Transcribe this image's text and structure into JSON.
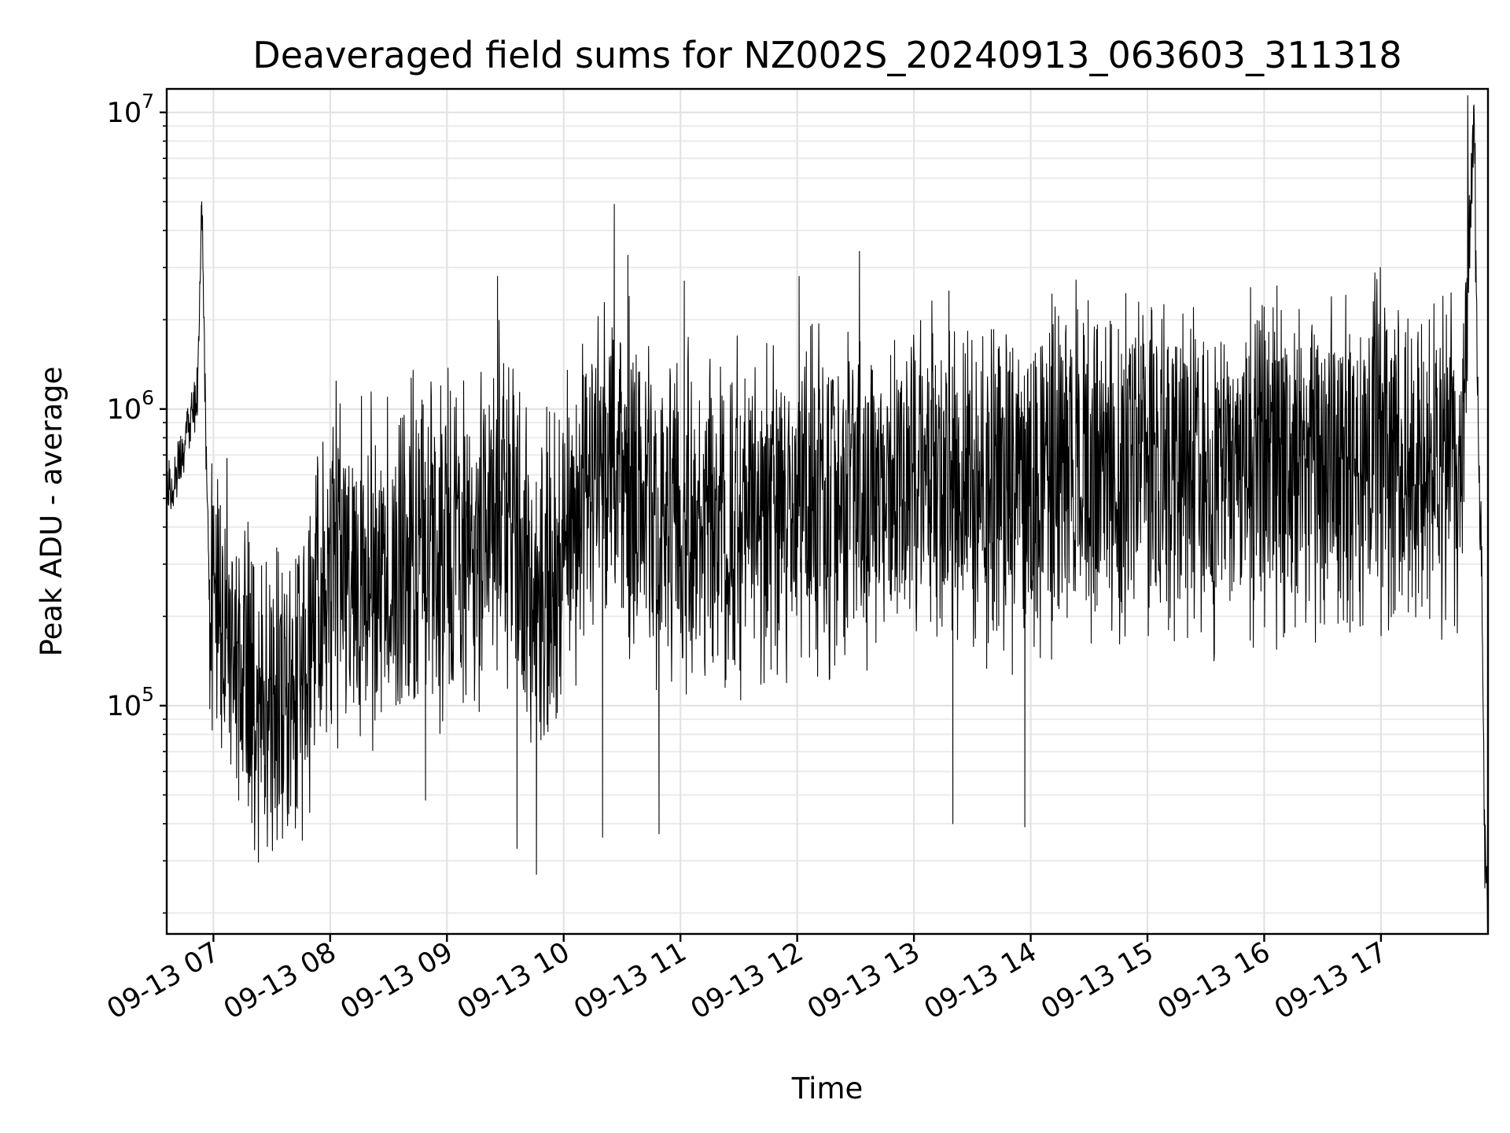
{
  "chart_data": {
    "type": "line",
    "title": "Deaveraged field sums for NZ002S_20240913_063603_311318",
    "xlabel": "Time",
    "ylabel": "Peak ADU - average",
    "yscale": "log",
    "ylim": [
      17000,
      12000000
    ],
    "xlim": [
      "2024-09-13 06:36",
      "2024-09-13 17:55"
    ],
    "grid": true,
    "x_ticks": [
      {
        "value": "2024-09-13 07:00",
        "label": "09-13 07"
      },
      {
        "value": "2024-09-13 08:00",
        "label": "09-13 08"
      },
      {
        "value": "2024-09-13 09:00",
        "label": "09-13 09"
      },
      {
        "value": "2024-09-13 10:00",
        "label": "09-13 10"
      },
      {
        "value": "2024-09-13 11:00",
        "label": "09-13 11"
      },
      {
        "value": "2024-09-13 12:00",
        "label": "09-13 12"
      },
      {
        "value": "2024-09-13 13:00",
        "label": "09-13 13"
      },
      {
        "value": "2024-09-13 14:00",
        "label": "09-13 14"
      },
      {
        "value": "2024-09-13 15:00",
        "label": "09-13 15"
      },
      {
        "value": "2024-09-13 16:00",
        "label": "09-13 16"
      },
      {
        "value": "2024-09-13 17:00",
        "label": "09-13 17"
      }
    ],
    "y_ticks": [
      {
        "value": 100000,
        "base": "10",
        "exp": "5"
      },
      {
        "value": 1000000,
        "base": "10",
        "exp": "6"
      },
      {
        "value": 10000000,
        "base": "10",
        "exp": "7"
      }
    ],
    "series": [
      {
        "color": "#000000",
        "points": [
          [
            "2024-09-13 06:36",
            520000
          ],
          [
            "2024-09-13 06:45",
            700000
          ],
          [
            "2024-09-13 06:52",
            1200000
          ],
          [
            "2024-09-13 06:54",
            5000000
          ],
          [
            "2024-09-13 06:56",
            900000
          ],
          [
            "2024-09-13 06:58",
            220000
          ],
          [
            "2024-09-13 07:15",
            120000
          ],
          [
            "2024-09-13 07:30",
            100000
          ],
          [
            "2024-09-13 07:45",
            130000
          ],
          [
            "2024-09-13 08:00",
            300000
          ],
          [
            "2024-09-13 08:30",
            280000
          ],
          [
            "2024-09-13 09:00",
            330000
          ],
          [
            "2024-09-13 09:30",
            500000
          ],
          [
            "2024-09-13 09:45",
            200000
          ],
          [
            "2024-09-13 10:00",
            380000
          ],
          [
            "2024-09-13 10:25",
            600000
          ],
          [
            "2024-09-13 10:45",
            450000
          ],
          [
            "2024-09-13 11:00",
            400000
          ],
          [
            "2024-09-13 11:30",
            420000
          ],
          [
            "2024-09-13 12:00",
            480000
          ],
          [
            "2024-09-13 12:30",
            560000
          ],
          [
            "2024-09-13 13:00",
            580000
          ],
          [
            "2024-09-13 13:30",
            570000
          ],
          [
            "2024-09-13 14:00",
            560000
          ],
          [
            "2024-09-13 14:30",
            620000
          ],
          [
            "2024-09-13 15:00",
            640000
          ],
          [
            "2024-09-13 15:30",
            600000
          ],
          [
            "2024-09-13 16:00",
            650000
          ],
          [
            "2024-09-13 16:30",
            680000
          ],
          [
            "2024-09-13 17:00",
            700000
          ],
          [
            "2024-09-13 17:40",
            600000
          ],
          [
            "2024-09-13 17:48",
            9000000
          ],
          [
            "2024-09-13 17:50",
            800000
          ],
          [
            "2024-09-13 17:52",
            250000
          ],
          [
            "2024-09-13 17:53",
            40000
          ],
          [
            "2024-09-13 17:55",
            21000
          ]
        ],
        "peaks": [
          [
            "2024-09-13 06:54",
            5000000
          ],
          [
            "2024-09-13 09:26",
            2800000
          ],
          [
            "2024-09-13 10:26",
            4900000
          ],
          [
            "2024-09-13 10:33",
            3300000
          ],
          [
            "2024-09-13 11:02",
            2700000
          ],
          [
            "2024-09-13 12:01",
            2800000
          ],
          [
            "2024-09-13 12:32",
            3400000
          ],
          [
            "2024-09-13 13:18",
            2500000
          ],
          [
            "2024-09-13 15:02",
            2200000
          ],
          [
            "2024-09-13 17:48",
            9000000
          ]
        ],
        "troughs": [
          [
            "2024-09-13 07:13",
            48000
          ],
          [
            "2024-09-13 07:33",
            46000
          ],
          [
            "2024-09-13 08:49",
            48000
          ],
          [
            "2024-09-13 09:36",
            33000
          ],
          [
            "2024-09-13 09:46",
            27000
          ],
          [
            "2024-09-13 10:20",
            36000
          ],
          [
            "2024-09-13 10:49",
            37000
          ],
          [
            "2024-09-13 13:20",
            40000
          ],
          [
            "2024-09-13 13:57",
            39000
          ],
          [
            "2024-09-13 17:55",
            21000
          ]
        ]
      }
    ]
  }
}
